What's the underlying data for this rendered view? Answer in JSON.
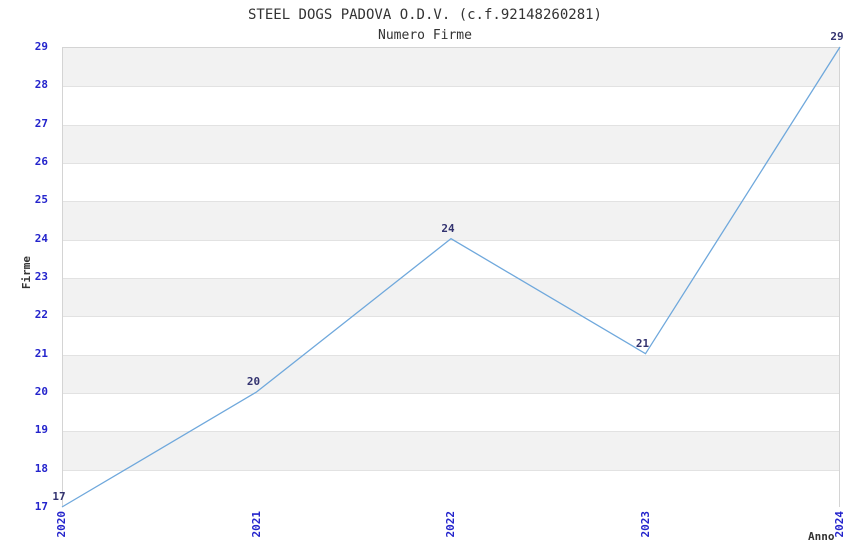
{
  "title": "STEEL DOGS PADOVA O.D.V. (c.f.92148260281)",
  "subtitle": "Numero Firme",
  "chart_data": {
    "type": "line",
    "x": [
      "2020",
      "2021",
      "2022",
      "2023",
      "2024"
    ],
    "values": [
      17,
      20,
      24,
      21,
      29
    ],
    "data_labels": [
      "17",
      "20",
      "24",
      "21",
      "29"
    ],
    "title": "STEEL DOGS PADOVA O.D.V. (c.f.92148260281)",
    "subtitle": "Numero Firme",
    "xlabel": "Anno",
    "ylabel": "Firme",
    "ylim": [
      17,
      29
    ],
    "ytick_step": 1,
    "yticks": [
      17,
      18,
      19,
      20,
      21,
      22,
      23,
      24,
      25,
      26,
      27,
      28,
      29
    ],
    "legend": "none",
    "grid": "horizontal-bands-alternating",
    "colors": {
      "line": "#6fa8dc",
      "axis_ticks": "#2424cc",
      "data_labels": "#333370",
      "band_gray": "#f2f2f2",
      "gridline": "#e2e2e2",
      "plot_border": "#d4d4d4",
      "title_text": "#333333"
    }
  }
}
